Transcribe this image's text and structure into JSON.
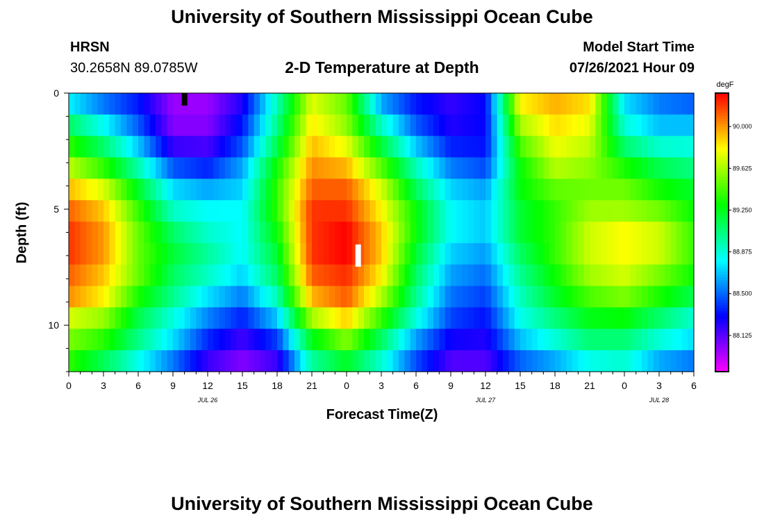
{
  "page": {
    "title": "University of Southern Mississippi Ocean Cube",
    "footer_title": "University of Southern Mississippi Ocean Cube"
  },
  "header": {
    "station": "HRSN",
    "coords": "30.2658N  89.0785W",
    "plot_title": "2-D Temperature at Depth",
    "model_label": "Model Start Time",
    "model_time": "07/26/2021 Hour 09"
  },
  "chart_data": {
    "type": "heatmap",
    "title": "2-D Temperature at Depth",
    "xlabel": "Forecast Time(Z)",
    "ylabel": "Depth (ft)",
    "x_range": [
      0,
      54
    ],
    "y_range": [
      0,
      12
    ],
    "y_ticks": [
      0,
      5,
      10
    ],
    "x_ticks": [
      {
        "pos": 0,
        "label": "0"
      },
      {
        "pos": 3,
        "label": "3"
      },
      {
        "pos": 6,
        "label": "6"
      },
      {
        "pos": 9,
        "label": "9"
      },
      {
        "pos": 12,
        "label": "12"
      },
      {
        "pos": 15,
        "label": "15"
      },
      {
        "pos": 18,
        "label": "18"
      },
      {
        "pos": 21,
        "label": "21"
      },
      {
        "pos": 24,
        "label": "0"
      },
      {
        "pos": 27,
        "label": "3"
      },
      {
        "pos": 30,
        "label": "6"
      },
      {
        "pos": 33,
        "label": "9"
      },
      {
        "pos": 36,
        "label": "12"
      },
      {
        "pos": 39,
        "label": "15"
      },
      {
        "pos": 42,
        "label": "18"
      },
      {
        "pos": 45,
        "label": "21"
      },
      {
        "pos": 48,
        "label": "0"
      },
      {
        "pos": 51,
        "label": "3"
      },
      {
        "pos": 54,
        "label": "6"
      }
    ],
    "date_labels": [
      {
        "pos": 12,
        "label": "JUL 26"
      },
      {
        "pos": 36,
        "label": "JUL 27"
      },
      {
        "pos": 51,
        "label": "JUL 28"
      }
    ],
    "colorbar": {
      "unit": "degF",
      "min": 87.8,
      "max": 90.3,
      "ticks": [
        90.0,
        89.625,
        89.25,
        88.875,
        88.5,
        88.125
      ],
      "tick_labels": [
        "90.000",
        "89.625",
        "89.250",
        "88.875",
        "88.500",
        "88.125"
      ]
    },
    "markers": [
      {
        "x": 10,
        "y": 0.25,
        "color": "#000000"
      },
      {
        "x": 25,
        "y": 7.0,
        "color": "#ffffff"
      }
    ],
    "times": [
      0,
      3,
      6,
      9,
      12,
      15,
      18,
      21,
      24,
      27,
      30,
      33,
      36,
      39,
      42,
      45,
      48,
      51,
      54
    ],
    "depths": [
      0,
      1,
      2,
      3,
      4,
      5,
      6,
      7,
      8,
      9,
      10,
      11,
      12
    ],
    "values": [
      [
        88.6,
        88.4,
        88.3,
        88.0,
        88.0,
        88.2,
        88.9,
        89.7,
        89.5,
        88.5,
        88.3,
        88.2,
        88.3,
        89.9,
        90.0,
        89.9,
        88.7,
        88.5,
        88.4
      ],
      [
        89.0,
        88.7,
        88.4,
        88.0,
        88.0,
        88.3,
        89.0,
        89.8,
        89.5,
        88.8,
        88.4,
        88.2,
        88.3,
        89.7,
        89.9,
        89.8,
        88.8,
        88.6,
        88.6
      ],
      [
        89.3,
        89.0,
        88.6,
        88.1,
        88.1,
        88.4,
        89.1,
        89.9,
        89.7,
        89.1,
        88.6,
        88.3,
        88.3,
        89.5,
        89.8,
        89.7,
        89.0,
        88.8,
        88.8
      ],
      [
        89.6,
        89.3,
        88.9,
        88.4,
        88.3,
        88.6,
        89.3,
        90.0,
        89.9,
        89.4,
        88.9,
        88.5,
        88.4,
        89.3,
        89.7,
        89.6,
        89.3,
        89.1,
        89.0
      ],
      [
        89.9,
        89.7,
        89.2,
        88.7,
        88.6,
        88.7,
        89.4,
        90.1,
        90.1,
        89.7,
        89.1,
        88.7,
        88.6,
        89.3,
        89.5,
        89.5,
        89.5,
        89.3,
        89.2
      ],
      [
        90.1,
        89.9,
        89.4,
        88.9,
        88.8,
        88.8,
        89.4,
        90.2,
        90.2,
        89.8,
        89.3,
        88.8,
        88.7,
        89.2,
        89.4,
        89.6,
        89.6,
        89.5,
        89.3
      ],
      [
        90.2,
        90.0,
        89.5,
        89.1,
        88.9,
        88.8,
        89.3,
        90.2,
        90.3,
        89.9,
        89.3,
        88.8,
        88.7,
        89.2,
        89.4,
        89.7,
        89.8,
        89.7,
        89.4
      ],
      [
        90.2,
        90.0,
        89.5,
        89.2,
        89.0,
        88.8,
        89.2,
        90.2,
        90.3,
        89.9,
        89.2,
        88.7,
        88.6,
        89.1,
        89.4,
        89.7,
        89.8,
        89.7,
        89.4
      ],
      [
        90.1,
        89.9,
        89.5,
        89.1,
        88.9,
        88.7,
        89.1,
        90.1,
        90.2,
        89.8,
        89.1,
        88.6,
        88.5,
        89.0,
        89.3,
        89.6,
        89.7,
        89.5,
        89.3
      ],
      [
        90.0,
        89.8,
        89.3,
        89.0,
        88.7,
        88.5,
        88.9,
        89.9,
        90.1,
        89.6,
        89.0,
        88.5,
        88.4,
        88.9,
        89.2,
        89.4,
        89.5,
        89.3,
        89.1
      ],
      [
        89.6,
        89.5,
        89.1,
        88.8,
        88.5,
        88.3,
        88.6,
        89.5,
        89.8,
        89.3,
        88.8,
        88.4,
        88.3,
        88.8,
        89.0,
        89.2,
        89.2,
        89.0,
        88.8
      ],
      [
        89.5,
        89.3,
        89.0,
        88.7,
        88.3,
        88.1,
        88.3,
        89.1,
        89.4,
        89.0,
        88.5,
        88.2,
        88.2,
        88.6,
        88.8,
        89.0,
        89.0,
        88.8,
        88.7
      ],
      [
        89.3,
        89.0,
        88.7,
        88.4,
        88.1,
        88.0,
        88.1,
        88.9,
        89.1,
        88.8,
        88.4,
        88.1,
        88.1,
        88.4,
        88.5,
        88.7,
        88.8,
        88.5,
        88.4
      ]
    ]
  }
}
